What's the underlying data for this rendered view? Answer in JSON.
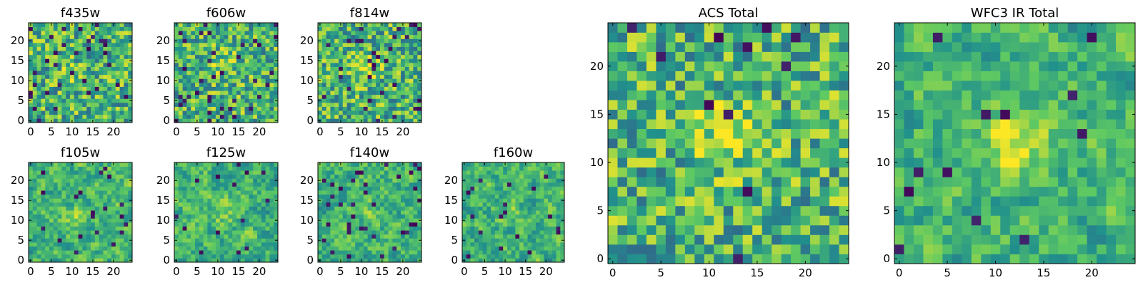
{
  "chart_data": {
    "type": "heatmap",
    "colormap": [
      "#440154",
      "#3b528b",
      "#21918c",
      "#5ec962",
      "#fde725"
    ],
    "panels": [
      {
        "title": "f435w",
        "grid_size": 24,
        "xticks": [
          0,
          5,
          10,
          15,
          20
        ],
        "yticks": [
          0,
          5,
          10,
          15,
          20
        ],
        "seed": 11,
        "blob": {
          "x": 10,
          "y": 12,
          "strength": 0.08
        },
        "smooth": 0,
        "dark_fraction": 0.06
      },
      {
        "title": "f606w",
        "grid_size": 24,
        "xticks": [
          0,
          5,
          10,
          15,
          20
        ],
        "yticks": [
          0,
          5,
          10,
          15,
          20
        ],
        "seed": 23,
        "blob": {
          "x": 11,
          "y": 14,
          "strength": 0.2
        },
        "smooth": 0,
        "dark_fraction": 0.05
      },
      {
        "title": "f814w",
        "grid_size": 24,
        "xticks": [
          0,
          5,
          10,
          15,
          20
        ],
        "yticks": [
          0,
          5,
          10,
          15,
          20
        ],
        "seed": 37,
        "blob": {
          "x": 11,
          "y": 13,
          "strength": 0.22
        },
        "smooth": 0,
        "dark_fraction": 0.05
      },
      {
        "title": "f105w",
        "grid_size": 24,
        "xticks": [
          0,
          5,
          10,
          15,
          20
        ],
        "yticks": [
          0,
          5,
          10,
          15,
          20
        ],
        "seed": 41,
        "blob": {
          "x": 11,
          "y": 11,
          "strength": 0.15
        },
        "smooth": 1,
        "dark_fraction": 0.03
      },
      {
        "title": "f125w",
        "grid_size": 24,
        "xticks": [
          0,
          5,
          10,
          15,
          20
        ],
        "yticks": [
          0,
          5,
          10,
          15,
          20
        ],
        "seed": 53,
        "blob": {
          "x": 12,
          "y": 12,
          "strength": 0.12
        },
        "smooth": 1,
        "dark_fraction": 0.03
      },
      {
        "title": "f140w",
        "grid_size": 24,
        "xticks": [
          0,
          5,
          10,
          15,
          20
        ],
        "yticks": [
          0,
          5,
          10,
          15,
          20
        ],
        "seed": 67,
        "blob": {
          "x": 10,
          "y": 13,
          "strength": 0.12
        },
        "smooth": 1,
        "dark_fraction": 0.04
      },
      {
        "title": "f160w",
        "grid_size": 24,
        "xticks": [
          0,
          5,
          10,
          15,
          20
        ],
        "yticks": [
          0,
          5,
          10,
          15,
          20
        ],
        "seed": 79,
        "blob": {
          "x": 11,
          "y": 12,
          "strength": 0.1
        },
        "smooth": 1,
        "dark_fraction": 0.04
      },
      {
        "title": "ACS Total",
        "grid_size": 24,
        "xticks": [
          0,
          5,
          10,
          15,
          20
        ],
        "yticks": [
          0,
          5,
          10,
          15,
          20
        ],
        "seed": 97,
        "blob": {
          "x": 12,
          "y": 13,
          "strength": 0.3
        },
        "smooth": 0,
        "dark_fraction": 0.025
      },
      {
        "title": "WFC3 IR Total",
        "grid_size": 24,
        "xticks": [
          0,
          5,
          10,
          15,
          20
        ],
        "yticks": [
          0,
          5,
          10,
          15,
          20
        ],
        "seed": 113,
        "blob": {
          "x": 12,
          "y": 12,
          "strength": 0.3
        },
        "smooth": 1,
        "dark_fraction": 0.025
      }
    ]
  }
}
